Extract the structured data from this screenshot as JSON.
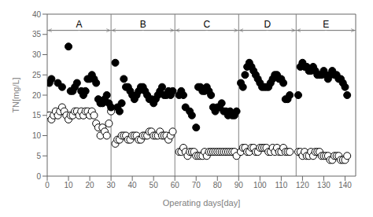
{
  "chart_data": {
    "type": "scatter",
    "xlabel": "Operating days[day]",
    "ylabel": "TN[mg/L]",
    "xlim": [
      0,
      145
    ],
    "ylim": [
      0,
      40
    ],
    "xticks": [
      0,
      10,
      20,
      30,
      40,
      50,
      60,
      70,
      80,
      90,
      100,
      110,
      120,
      130,
      140
    ],
    "yticks": [
      0,
      5,
      10,
      15,
      20,
      25,
      30,
      35,
      40
    ],
    "grid": false,
    "reference_lines": {
      "x": [
        30,
        60,
        90,
        117
      ],
      "y": [
        36
      ],
      "color": "gray"
    },
    "annotations": [
      {
        "text": "A",
        "x": 15,
        "y": 37.5
      },
      {
        "text": "B",
        "x": 45,
        "y": 37.5
      },
      {
        "text": "C",
        "x": 75,
        "y": 37.5
      },
      {
        "text": "D",
        "x": 103.5,
        "y": 37.5
      },
      {
        "text": "E",
        "x": 131,
        "y": 37.5
      }
    ],
    "series": [
      {
        "color": "black",
        "marker": "open_circle",
        "x": [
          1,
          2,
          3,
          4,
          5,
          6,
          7,
          8,
          9,
          10,
          11,
          12,
          13,
          14,
          15,
          16,
          17,
          18,
          19,
          20,
          21,
          22,
          23,
          24,
          25,
          26,
          27,
          28,
          29,
          30,
          32,
          33,
          34,
          35,
          36,
          37,
          38,
          39,
          40,
          41,
          42,
          43,
          44,
          45,
          46,
          47,
          48,
          49,
          50,
          51,
          52,
          53,
          54,
          55,
          56,
          57,
          58,
          59,
          62,
          63,
          64,
          65,
          66,
          67,
          68,
          69,
          70,
          71,
          72,
          73,
          74,
          75,
          76,
          77,
          78,
          79,
          80,
          81,
          82,
          83,
          84,
          85,
          86,
          87,
          88,
          89,
          91,
          92,
          93,
          94,
          95,
          96,
          97,
          98,
          99,
          100,
          101,
          102,
          103,
          104,
          105,
          106,
          107,
          108,
          109,
          110,
          111,
          112,
          113,
          114,
          118,
          119,
          120,
          121,
          122,
          123,
          124,
          125,
          126,
          127,
          128,
          129,
          130,
          131,
          132,
          133,
          134,
          135,
          136,
          137,
          138,
          139,
          140,
          141
        ],
        "values": [
          15,
          14,
          15,
          16,
          15,
          16,
          17,
          16,
          15,
          14,
          15,
          15,
          16,
          16,
          15,
          16,
          15,
          16,
          16,
          15,
          16,
          15,
          13,
          12,
          10,
          12,
          11,
          10,
          13,
          16,
          8,
          9,
          9,
          10,
          10,
          10,
          9,
          9,
          10,
          10,
          10,
          9,
          9,
          10,
          10,
          10,
          11,
          11,
          10,
          10,
          10,
          11,
          10,
          10,
          10,
          9,
          10,
          11,
          6,
          6,
          7,
          6,
          5,
          6,
          6,
          6,
          5,
          5,
          5,
          5,
          6,
          5,
          6,
          6,
          6,
          6,
          6,
          6,
          6,
          6,
          6,
          6,
          6,
          6,
          6,
          5,
          6,
          7,
          7,
          6,
          6,
          7,
          7,
          6,
          6,
          7,
          7,
          7,
          7,
          6,
          6,
          7,
          6,
          7,
          6,
          6,
          7,
          6,
          6,
          6,
          6,
          6,
          5,
          6,
          5,
          5,
          6,
          5,
          6,
          6,
          6,
          5,
          5,
          5,
          5,
          4,
          4,
          5,
          5,
          5,
          4,
          4,
          4,
          5
        ]
      },
      {
        "color": "black",
        "marker": "circle",
        "x": [
          1,
          2,
          5,
          7,
          10,
          11,
          12,
          13,
          14,
          16,
          17,
          18,
          19,
          20,
          21,
          22,
          23,
          24,
          25,
          26,
          27,
          28,
          29,
          30,
          32,
          33,
          34,
          35,
          36,
          37,
          38,
          39,
          40,
          41,
          42,
          43,
          44,
          45,
          46,
          47,
          48,
          49,
          50,
          51,
          52,
          53,
          54,
          55,
          56,
          57,
          58,
          59,
          62,
          63,
          64,
          65,
          67,
          68,
          70,
          71,
          72,
          73,
          74,
          75,
          76,
          77,
          78,
          79,
          80,
          81,
          82,
          83,
          84,
          85,
          86,
          87,
          88,
          89,
          91,
          92,
          93,
          94,
          95,
          96,
          97,
          98,
          99,
          100,
          101,
          102,
          103,
          104,
          105,
          106,
          107,
          108,
          109,
          110,
          111,
          112,
          113,
          114,
          118,
          119,
          120,
          121,
          122,
          123,
          124,
          125,
          126,
          127,
          128,
          129,
          130,
          131,
          132,
          133,
          134,
          135,
          136,
          137,
          138,
          139,
          140,
          141
        ],
        "values": [
          23,
          24,
          23,
          22,
          32,
          21,
          21,
          22,
          23,
          21,
          20,
          21,
          24,
          24,
          25,
          24,
          23,
          19,
          18,
          18,
          19,
          20,
          18,
          17,
          28,
          17,
          16,
          18,
          24,
          22,
          22,
          21,
          20,
          19,
          20,
          21,
          22,
          22,
          21,
          20,
          19,
          19,
          18,
          19,
          20,
          21,
          22,
          20,
          20,
          21,
          20,
          21,
          20,
          21,
          20,
          17,
          16,
          15,
          12,
          22,
          22,
          21,
          21,
          22,
          21,
          20,
          17,
          16,
          17,
          17,
          18,
          16,
          16,
          15,
          16,
          15,
          15,
          16,
          23,
          22,
          25,
          27,
          28,
          27,
          26,
          25,
          24,
          23,
          22,
          22,
          22,
          22,
          23,
          24,
          25,
          25,
          24,
          24,
          23,
          19,
          19,
          20,
          20,
          27,
          28,
          27,
          27,
          26,
          26,
          27,
          26,
          25,
          25,
          25,
          26,
          25,
          24,
          25,
          26,
          25,
          25,
          24,
          24,
          23,
          22,
          20
        ]
      }
    ]
  }
}
